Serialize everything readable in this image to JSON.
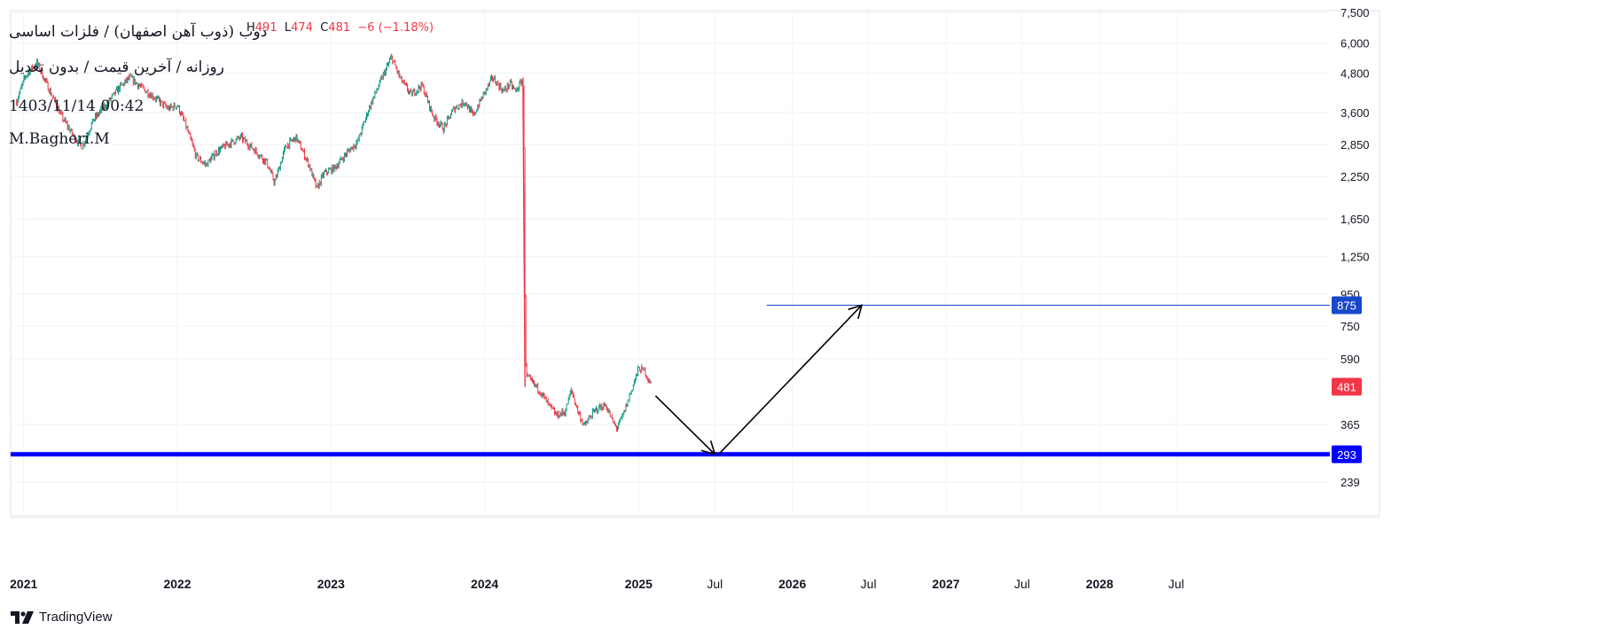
{
  "legend": {
    "line1": "ذوب (ذوب آهن اصفهان) / فلزات اساسی",
    "line2": "روزانه / آخرین قیمت / بدون تعدیل",
    "line3": "1403/11/14 00:42",
    "line4": "M.Bagheri.M"
  },
  "ohlc": {
    "h_label": "H",
    "h_value": "491",
    "l_label": "L",
    "l_value": "474",
    "c_label": "C",
    "c_value": "481",
    "change": "−6 (−1.18%)"
  },
  "brand": {
    "name": "TradingView"
  },
  "colors": {
    "up": "#089981",
    "down": "#f23645",
    "support": "#0000ff",
    "target": "#1848cc",
    "last": "#f23645",
    "grid": "#f0f3fa",
    "text": "#131722"
  },
  "chart_data": {
    "type": "candlestick",
    "y_scale": "log",
    "ylim": [
      230,
      7600
    ],
    "xlim": [
      "2020-12-01",
      "2029-07-01"
    ],
    "y_ticks": [
      "7,500",
      "6,000",
      "4,800",
      "3,600",
      "2,850",
      "2,250",
      "1,650",
      "1,250",
      "950",
      "750",
      "590",
      "365",
      "239"
    ],
    "y_tick_values": [
      7500,
      6000,
      4800,
      3600,
      2850,
      2250,
      1650,
      1250,
      950,
      750,
      590,
      365,
      239
    ],
    "x_ticks": [
      {
        "label": "2021",
        "date": "2021-01-01",
        "bold": true
      },
      {
        "label": "2022",
        "date": "2022-01-01",
        "bold": true
      },
      {
        "label": "2023",
        "date": "2023-01-01",
        "bold": true
      },
      {
        "label": "2024",
        "date": "2024-01-01",
        "bold": true
      },
      {
        "label": "2025",
        "date": "2025-01-01",
        "bold": true
      },
      {
        "label": "Jul",
        "date": "2025-07-01",
        "bold": false
      },
      {
        "label": "2026",
        "date": "2026-01-01",
        "bold": true
      },
      {
        "label": "Jul",
        "date": "2026-07-01",
        "bold": false
      },
      {
        "label": "2027",
        "date": "2027-01-01",
        "bold": true
      },
      {
        "label": "Jul",
        "date": "2027-07-01",
        "bold": false
      },
      {
        "label": "2028",
        "date": "2028-01-01",
        "bold": true
      },
      {
        "label": "Jul",
        "date": "2028-07-01",
        "bold": false
      }
    ],
    "price_path": [
      [
        "2020-12-15",
        3900
      ],
      [
        "2021-01-05",
        4700
      ],
      [
        "2021-02-01",
        5200
      ],
      [
        "2021-03-01",
        4300
      ],
      [
        "2021-04-01",
        3500
      ],
      [
        "2021-05-01",
        3000
      ],
      [
        "2021-05-20",
        2800
      ],
      [
        "2021-06-15",
        3400
      ],
      [
        "2021-07-15",
        3800
      ],
      [
        "2021-08-15",
        4300
      ],
      [
        "2021-09-10",
        4650
      ],
      [
        "2021-10-10",
        4300
      ],
      [
        "2021-11-10",
        4000
      ],
      [
        "2021-12-10",
        3700
      ],
      [
        "2022-01-01",
        3800
      ],
      [
        "2022-01-20",
        3300
      ],
      [
        "2022-02-15",
        2600
      ],
      [
        "2022-03-10",
        2450
      ],
      [
        "2022-04-05",
        2700
      ],
      [
        "2022-05-01",
        2850
      ],
      [
        "2022-06-01",
        3000
      ],
      [
        "2022-07-01",
        2750
      ],
      [
        "2022-08-01",
        2500
      ],
      [
        "2022-08-20",
        2150
      ],
      [
        "2022-09-15",
        2800
      ],
      [
        "2022-10-10",
        3000
      ],
      [
        "2022-11-10",
        2450
      ],
      [
        "2022-11-28",
        2050
      ],
      [
        "2022-12-15",
        2300
      ],
      [
        "2023-01-10",
        2400
      ],
      [
        "2023-02-10",
        2700
      ],
      [
        "2023-03-05",
        2900
      ],
      [
        "2023-04-01",
        3700
      ],
      [
        "2023-05-01",
        4600
      ],
      [
        "2023-05-25",
        5400
      ],
      [
        "2023-06-15",
        4600
      ],
      [
        "2023-07-10",
        4100
      ],
      [
        "2023-08-05",
        4400
      ],
      [
        "2023-09-01",
        3500
      ],
      [
        "2023-09-25",
        3200
      ],
      [
        "2023-10-20",
        3700
      ],
      [
        "2023-11-15",
        3900
      ],
      [
        "2023-12-05",
        3500
      ],
      [
        "2023-12-25",
        4000
      ],
      [
        "2024-01-20",
        4650
      ],
      [
        "2024-02-15",
        4200
      ],
      [
        "2024-03-01",
        4450
      ],
      [
        "2024-03-15",
        4200
      ],
      [
        "2024-04-01",
        4600
      ],
      [
        "2024-04-04",
        2600
      ],
      [
        "2024-04-05",
        1500
      ],
      [
        "2024-04-06",
        850
      ],
      [
        "2024-04-07",
        600
      ],
      [
        "2024-04-09",
        520
      ],
      [
        "2024-04-20",
        500
      ],
      [
        "2024-05-10",
        470
      ],
      [
        "2024-06-01",
        420
      ],
      [
        "2024-06-20",
        390
      ],
      [
        "2024-07-10",
        400
      ],
      [
        "2024-07-25",
        470
      ],
      [
        "2024-08-10",
        400
      ],
      [
        "2024-08-25",
        360
      ],
      [
        "2024-09-10",
        390
      ],
      [
        "2024-09-25",
        410
      ],
      [
        "2024-10-15",
        420
      ],
      [
        "2024-11-01",
        370
      ],
      [
        "2024-11-10",
        355
      ],
      [
        "2024-11-25",
        390
      ],
      [
        "2024-12-15",
        470
      ],
      [
        "2025-01-01",
        550
      ],
      [
        "2025-01-15",
        540
      ],
      [
        "2025-02-01",
        481
      ]
    ],
    "support_level": {
      "value": 293,
      "label": "293"
    },
    "target_level": {
      "value": 875,
      "label": "875",
      "from": "2025-11-01"
    },
    "last_price": {
      "value": 481,
      "label": "481"
    },
    "arrows": [
      {
        "from": [
          "2025-02-10",
          450
        ],
        "to": [
          "2025-07-01",
          293
        ]
      },
      {
        "from": [
          "2025-07-10",
          293
        ],
        "to": [
          "2026-06-15",
          875
        ]
      }
    ]
  }
}
